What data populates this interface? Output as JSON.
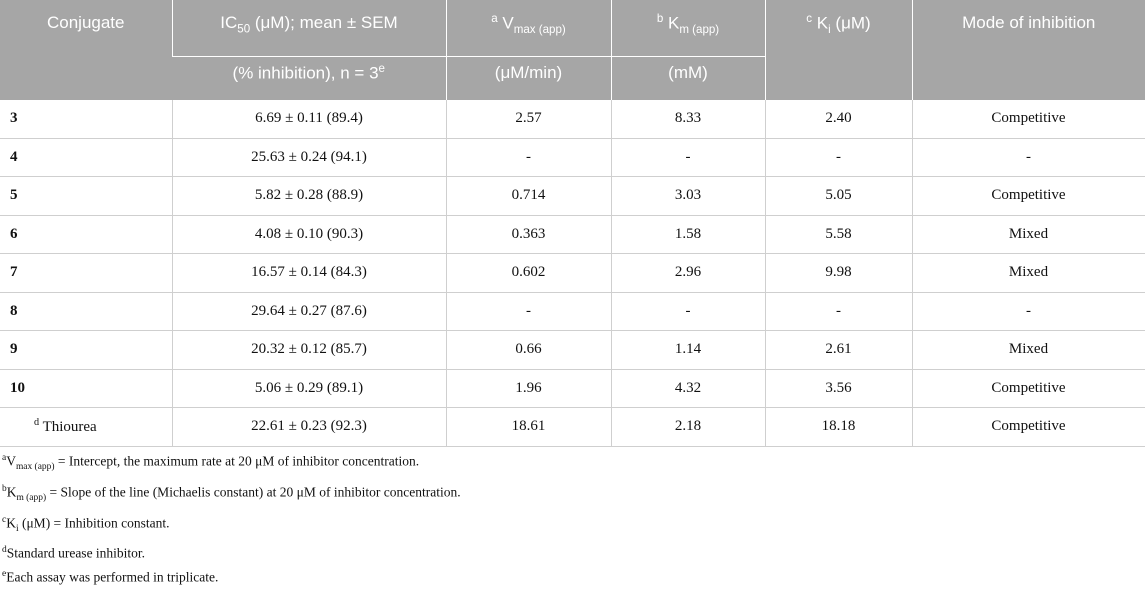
{
  "header": {
    "conjugate": "Conjugate",
    "ic50_main": "IC",
    "ic50_sub": "50",
    "ic50_rest": " (μM); mean ± SEM",
    "ic50_line2": "(% inhibition), n = 3",
    "ic50_line2_sup": "e",
    "vmax_sup": "a",
    "vmax_main": " V",
    "vmax_sub": "max (app)",
    "vmax_unit": "(μM/min)",
    "km_sup": "b",
    "km_main": " K",
    "km_sub": "m (app)",
    "km_unit": "(mM)",
    "ki_sup": "c",
    "ki_main": " K",
    "ki_sub": "i",
    "ki_rest": " (μM)",
    "mode": "Mode of inhibition"
  },
  "rows": [
    {
      "id": "3",
      "ic50": "6.69 ± 0.11 (89.4)",
      "vmax": "2.57",
      "km": "8.33",
      "ki": "2.40",
      "mode": "Competitive"
    },
    {
      "id": "4",
      "ic50": "25.63 ± 0.24 (94.1)",
      "vmax": "-",
      "km": "-",
      "ki": "-",
      "mode": "-"
    },
    {
      "id": "5",
      "ic50": "5.82 ± 0.28 (88.9)",
      "vmax": "0.714",
      "km": "3.03",
      "ki": "5.05",
      "mode": "Competitive"
    },
    {
      "id": "6",
      "ic50": "4.08 ± 0.10 (90.3)",
      "vmax": "0.363",
      "km": "1.58",
      "ki": "5.58",
      "mode": "Mixed"
    },
    {
      "id": "7",
      "ic50": "16.57 ± 0.14 (84.3)",
      "vmax": "0.602",
      "km": "2.96",
      "ki": "9.98",
      "mode": "Mixed"
    },
    {
      "id": "8",
      "ic50": "29.64 ± 0.27 (87.6)",
      "vmax": "-",
      "km": "-",
      "ki": "-",
      "mode": "-"
    },
    {
      "id": "9",
      "ic50": "20.32 ± 0.12 (85.7)",
      "vmax": "0.66",
      "km": "1.14",
      "ki": "2.61",
      "mode": "Mixed"
    },
    {
      "id": "10",
      "ic50": "5.06 ± 0.29 (89.1)",
      "vmax": "1.96",
      "km": "4.32",
      "ki": "3.56",
      "mode": "Competitive"
    }
  ],
  "reference": {
    "sup": "d",
    "name": " Thiourea",
    "ic50": "22.61 ± 0.23 (92.3)",
    "vmax": "18.61",
    "km": "2.18",
    "ki": "18.18",
    "mode": "Competitive"
  },
  "footnotes": {
    "a": {
      "sup": "a",
      "main": "V",
      "sub": "max (app)",
      "text": " = Intercept, the maximum rate at 20 μM of inhibitor concentration."
    },
    "b": {
      "sup": "b",
      "main": "K",
      "sub": "m (app)",
      "text": " = Slope of the line (Michaelis constant) at 20 μM of inhibitor concentration."
    },
    "c": {
      "sup": "c",
      "main": "K",
      "sub": "i",
      "text": " (μM) = Inhibition constant."
    },
    "d": {
      "sup": "d",
      "text": "Standard urease inhibitor."
    },
    "e": {
      "sup": "e",
      "text": "Each assay was performed in triplicate."
    }
  }
}
